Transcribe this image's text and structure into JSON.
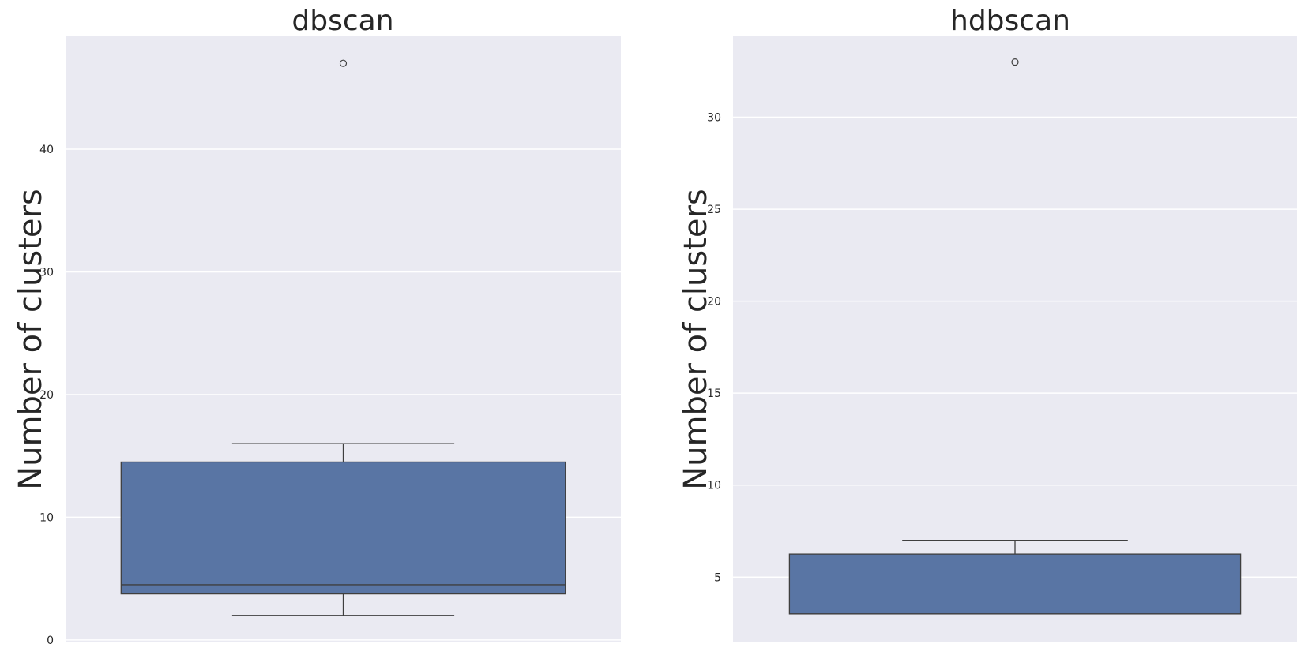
{
  "chart_data": [
    {
      "type": "box",
      "title": "dbscan",
      "ylabel": "Number of clusters",
      "xlabel": "",
      "ylim": [
        -0.2,
        49.2
      ],
      "yticks": [
        0,
        10,
        20,
        30,
        40
      ],
      "grid": true,
      "color": "#5975a4",
      "box": {
        "whisker_low": 2,
        "q1": 3.75,
        "median": 4.5,
        "q3": 14.5,
        "whisker_high": 16
      },
      "outliers": [
        47
      ]
    },
    {
      "type": "box",
      "title": "hdbscan",
      "ylabel": "Number of clusters",
      "xlabel": "",
      "ylim": [
        1.45,
        34.4
      ],
      "yticks": [
        5,
        10,
        15,
        20,
        25,
        30
      ],
      "grid": true,
      "color": "#5975a4",
      "box": {
        "whisker_low": 3,
        "q1": 3,
        "median": 3,
        "q3": 6.25,
        "whisker_high": 7
      },
      "outliers": [
        33
      ]
    }
  ]
}
